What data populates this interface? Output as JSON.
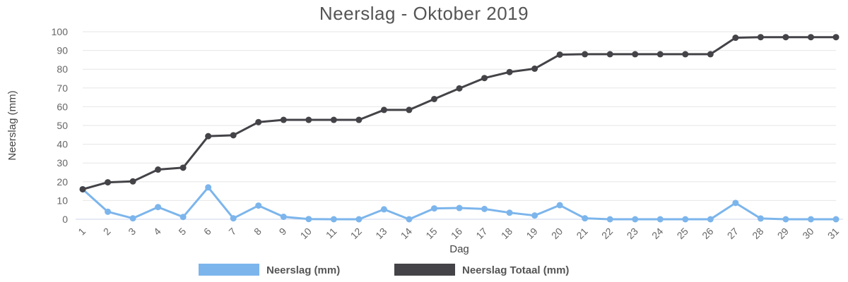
{
  "chart_data": {
    "type": "line",
    "title": "Neerslag - Oktober 2019",
    "xlabel": "Dag",
    "ylabel": "Neerslag (mm)",
    "ylim": [
      0,
      100
    ],
    "y_ticks": [
      0,
      10,
      20,
      30,
      40,
      50,
      60,
      70,
      80,
      90,
      100
    ],
    "x": [
      "1",
      "2",
      "3",
      "4",
      "5",
      "6",
      "7",
      "8",
      "9",
      "10",
      "11",
      "12",
      "13",
      "14",
      "15",
      "16",
      "17",
      "18",
      "19",
      "20",
      "21",
      "22",
      "23",
      "24",
      "25",
      "26",
      "27",
      "28",
      "29",
      "30",
      "31"
    ],
    "grid": true,
    "legend_position": "bottom",
    "series": [
      {
        "name": "Neerslag (mm)",
        "color": "#7cb5ec",
        "values": [
          16,
          4,
          0.5,
          6.5,
          1.2,
          17,
          0.5,
          7.3,
          1.3,
          0.1,
          0,
          0,
          5.3,
          0,
          5.8,
          6,
          5.5,
          3.5,
          2,
          7.5,
          0.5,
          0,
          0,
          0,
          0,
          0,
          8.7,
          0.4,
          0,
          0,
          0
        ]
      },
      {
        "name": "Neerslag Totaal (mm)",
        "color": "#434348",
        "values": [
          16,
          19.7,
          20.2,
          26.5,
          27.5,
          44.3,
          44.8,
          51.8,
          53,
          53,
          53,
          53,
          58.3,
          58.3,
          64.1,
          69.8,
          75.3,
          78.5,
          80.3,
          87.8,
          88,
          88,
          88,
          88,
          88,
          88,
          96.8,
          97.1,
          97.1,
          97.1,
          97.1
        ]
      }
    ]
  }
}
